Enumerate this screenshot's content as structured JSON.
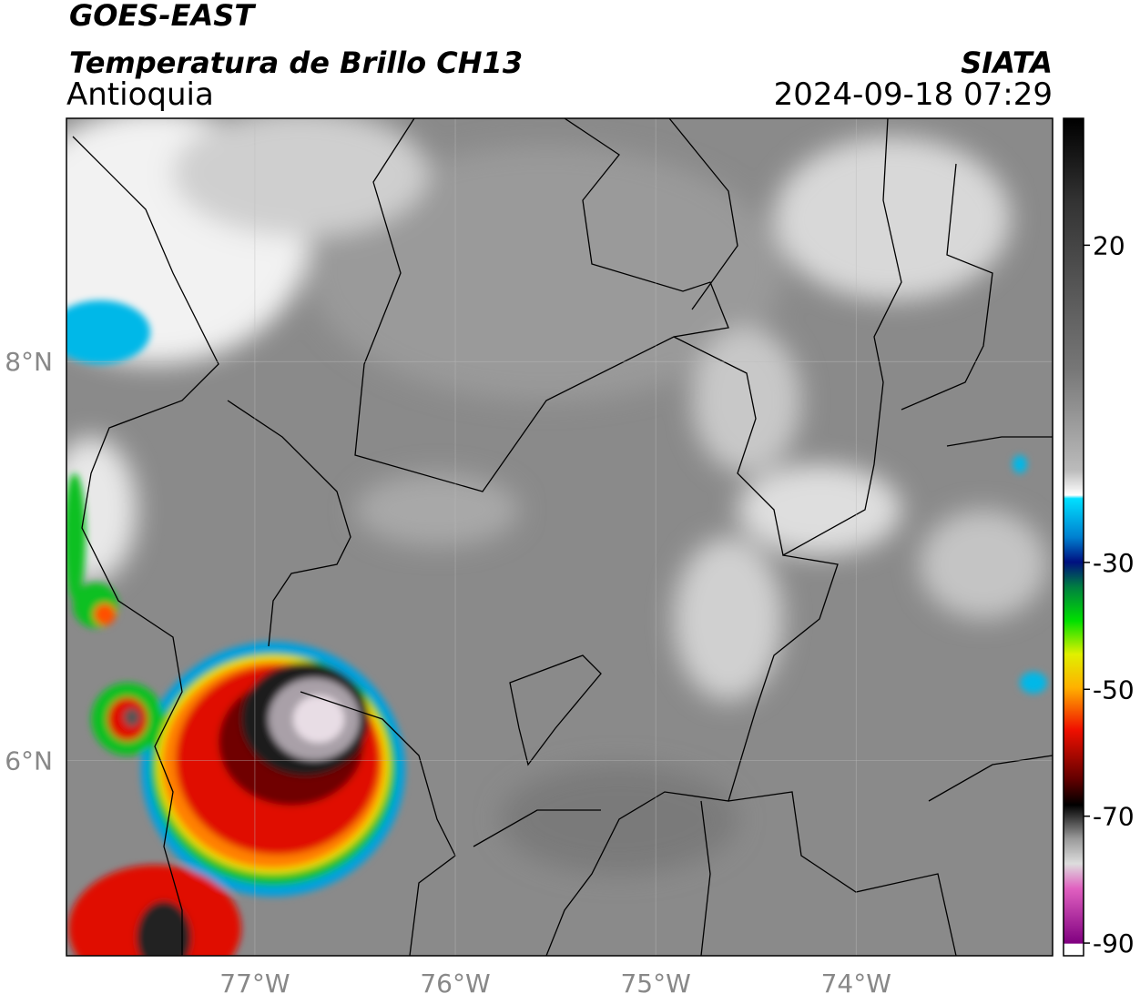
{
  "header": {
    "satellite": "GOES-EAST",
    "product": "Temperatura de Brillo CH13",
    "region": "Antioquia",
    "source": "SIATA",
    "datetime": "2024-09-18 07:29"
  },
  "map": {
    "lonlim": [
      -77.94,
      -73.02
    ],
    "latlim": [
      5.02,
      9.22
    ],
    "lonticks": [
      {
        "value": -77,
        "label": "77°W"
      },
      {
        "value": -76,
        "label": "76°W"
      },
      {
        "value": -75,
        "label": "75°W"
      },
      {
        "value": -74,
        "label": "74°W"
      }
    ],
    "latticks": [
      {
        "value": 8,
        "label": "8°N"
      },
      {
        "value": 6,
        "label": "6°N"
      }
    ],
    "grid": true
  },
  "colorbar": {
    "lim": [
      -92,
      40
    ],
    "ticks": [
      20,
      -30,
      -50,
      -70,
      -90
    ]
  }
}
